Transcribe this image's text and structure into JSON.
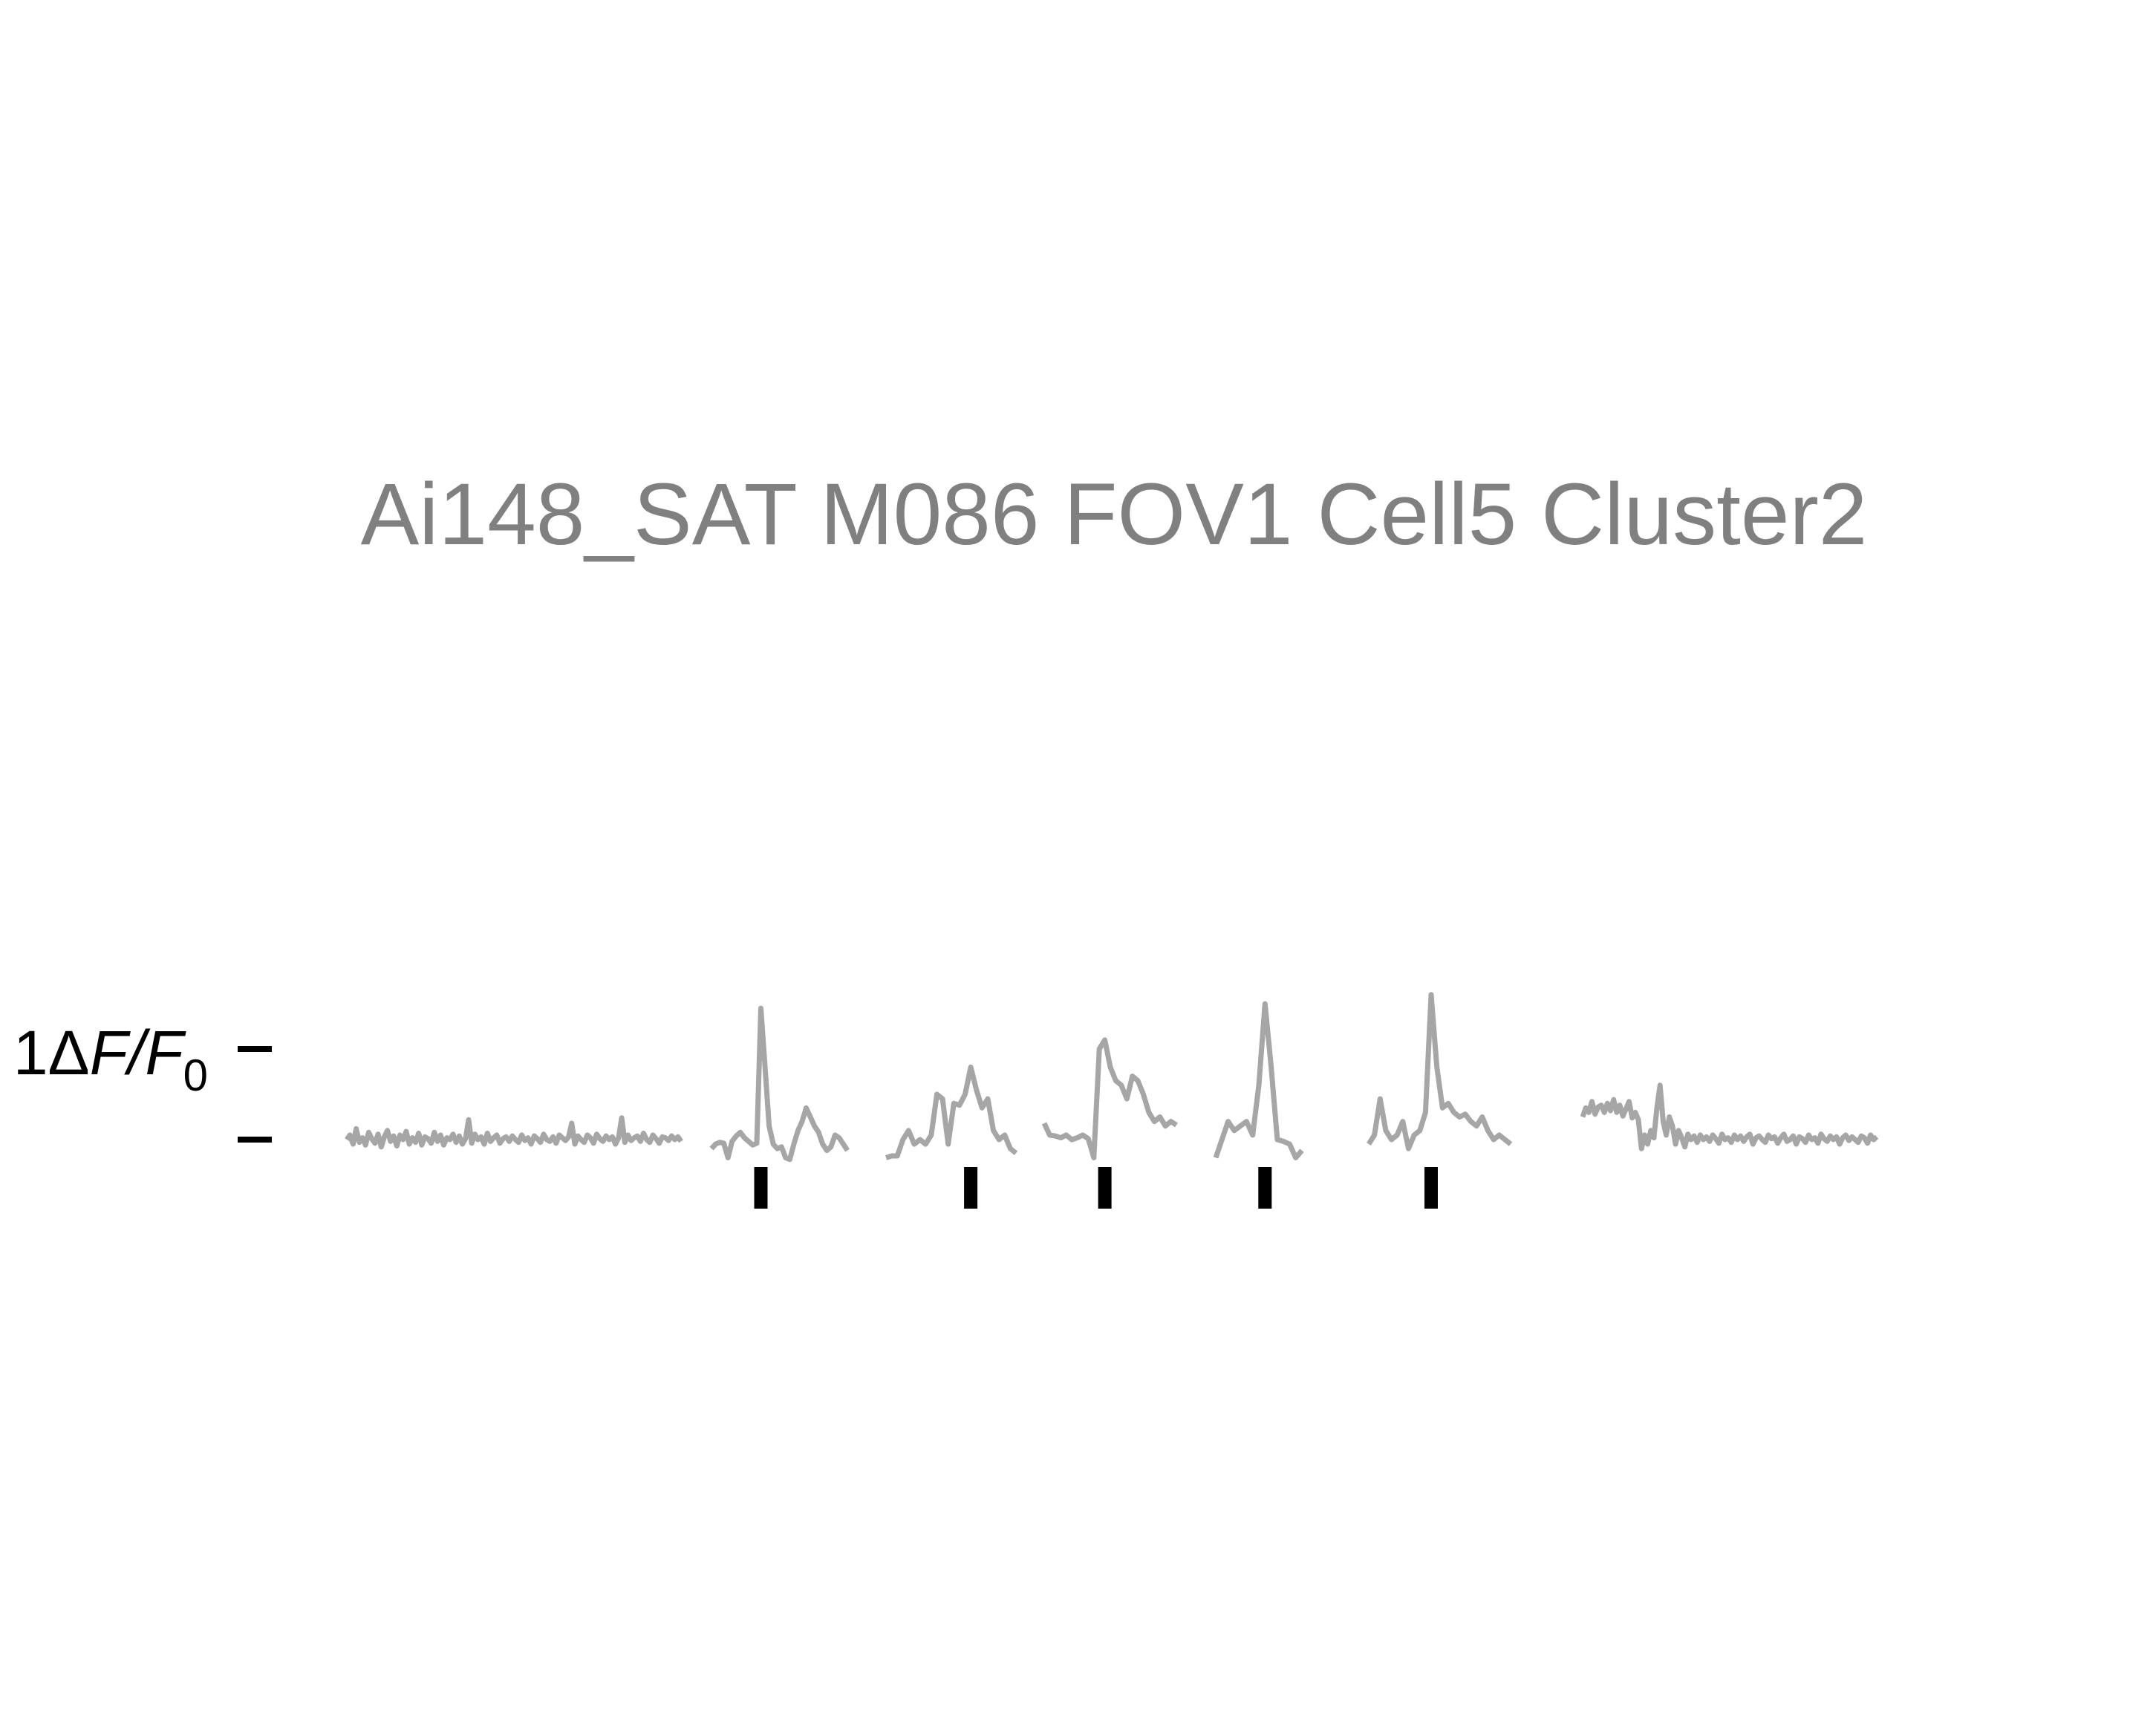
{
  "chart_data": {
    "type": "line",
    "title": "Ai148_SAT M086 FOV1 Cell5 Cluster2",
    "ylabel": {
      "prefix": "1",
      "delta": "Δ",
      "F": "F",
      "slash": "/",
      "F0": "F",
      "sub": "0"
    },
    "scale_bar_value": 1,
    "colors": {
      "trace": "#a6a6a6",
      "title": "#808080",
      "stim": "#000000",
      "axis": "#000000"
    },
    "segments": [
      {
        "name": "baseline",
        "has_stim": false,
        "values": [
          0.0,
          0.05,
          -0.05,
          0.12,
          -0.03,
          0.02,
          -0.06,
          0.08,
          0.01,
          -0.04,
          0.06,
          -0.08,
          0.03,
          0.1,
          -0.02,
          0.04,
          -0.07,
          0.05,
          0.0,
          0.09,
          -0.05,
          0.02,
          -0.03,
          0.07,
          -0.06,
          0.03,
          0.01,
          -0.04,
          0.08,
          -0.02,
          0.05,
          -0.06,
          0.02,
          0.0,
          0.06,
          -0.03,
          0.04,
          -0.05,
          0.01,
          0.22,
          -0.04,
          0.06,
          0.0,
          0.03,
          -0.05,
          0.07,
          -0.02,
          0.02,
          0.05,
          -0.04,
          0.01,
          0.03,
          -0.02,
          0.04,
          0.0,
          -0.03,
          0.05,
          -0.01,
          0.02,
          -0.05,
          0.04,
          0.01,
          -0.03,
          0.06,
          0.0,
          -0.02,
          0.03,
          -0.04,
          0.05,
          0.02,
          -0.01,
          0.03,
          0.18,
          -0.05,
          0.04,
          0.0,
          -0.03,
          0.05,
          0.02,
          -0.04,
          0.06,
          0.01,
          -0.02,
          0.04,
          0.0,
          0.03,
          -0.05,
          0.02,
          0.24,
          -0.03,
          0.05,
          -0.01,
          0.02,
          0.04,
          -0.02,
          0.07,
          0.0,
          -0.03,
          0.05,
          0.01,
          -0.04,
          0.03,
          0.02,
          -0.01,
          0.04,
          0.0,
          0.03,
          -0.02
        ]
      },
      {
        "name": "stim-1",
        "has_stim": true,
        "values": [
          -0.1,
          -0.05,
          -0.03,
          -0.04,
          -0.2,
          -0.02,
          0.04,
          0.08,
          0.02,
          -0.02,
          -0.06,
          -0.04,
          1.45,
          0.8,
          0.15,
          -0.05,
          -0.1,
          -0.08,
          -0.2,
          -0.22,
          -0.05,
          0.1,
          0.2,
          0.35,
          0.25,
          0.15,
          0.08,
          -0.05,
          -0.12,
          -0.08,
          0.05,
          0.02,
          -0.05,
          -0.12
        ]
      },
      {
        "name": "stim-2",
        "has_stim": true,
        "values": [
          -0.2,
          -0.18,
          -0.18,
          0.0,
          0.1,
          -0.05,
          0.0,
          -0.05,
          0.05,
          0.5,
          0.45,
          -0.05,
          0.4,
          0.38,
          0.5,
          0.8,
          0.55,
          0.35,
          0.45,
          0.1,
          0.0,
          0.05,
          -0.1,
          -0.15
        ]
      },
      {
        "name": "stim-3",
        "has_stim": true,
        "values": [
          0.18,
          0.05,
          0.04,
          0.02,
          0.05,
          0.0,
          0.02,
          0.05,
          0.01,
          -0.2,
          1.0,
          1.1,
          0.8,
          0.65,
          0.6,
          0.45,
          0.7,
          0.65,
          0.5,
          0.3,
          0.2,
          0.25,
          0.15,
          0.2,
          0.16
        ]
      },
      {
        "name": "stim-4",
        "has_stim": true,
        "values": [
          -0.2,
          0.0,
          0.2,
          0.1,
          0.15,
          0.2,
          0.05,
          0.6,
          1.5,
          0.8,
          0.0,
          -0.02,
          -0.05,
          -0.2,
          -0.12
        ]
      },
      {
        "name": "stim-5",
        "has_stim": true,
        "values": [
          -0.05,
          0.05,
          0.45,
          0.1,
          0.0,
          0.05,
          0.2,
          -0.1,
          0.05,
          0.1,
          0.3,
          1.6,
          0.8,
          0.35,
          0.4,
          0.3,
          0.25,
          0.28,
          0.2,
          0.15,
          0.25,
          0.1,
          0.0,
          0.05,
          0.0,
          -0.05
        ]
      },
      {
        "name": "post",
        "has_stim": false,
        "values": [
          0.25,
          0.35,
          0.3,
          0.42,
          0.28,
          0.36,
          0.38,
          0.3,
          0.4,
          0.32,
          0.44,
          0.3,
          0.38,
          0.26,
          0.34,
          0.42,
          0.24,
          0.3,
          0.22,
          -0.1,
          0.05,
          -0.05,
          0.1,
          0.02,
          0.35,
          0.6,
          0.2,
          0.05,
          0.25,
          0.15,
          -0.05,
          0.1,
          0.02,
          -0.08,
          0.06,
          0.0,
          0.04,
          -0.03,
          0.05,
          0.0,
          0.03,
          -0.02,
          0.05,
          0.01,
          -0.04,
          0.06,
          0.0,
          0.02,
          -0.03,
          0.05,
          0.0,
          0.04,
          -0.02,
          0.03,
          0.06,
          -0.05,
          0.02,
          0.04,
          0.0,
          -0.03,
          0.05,
          0.01,
          0.03,
          -0.04,
          0.02,
          0.06,
          -0.02,
          0.0,
          0.04,
          -0.05,
          0.03,
          0.01,
          -0.03,
          0.05,
          0.0,
          0.02,
          -0.04,
          0.06,
          0.01,
          -0.02,
          0.04,
          0.0,
          0.03,
          -0.05,
          0.02,
          0.05,
          -0.01,
          0.03,
          0.0,
          -0.03,
          0.04,
          0.02,
          -0.04,
          0.05,
          0.0,
          0.03
        ]
      }
    ]
  }
}
